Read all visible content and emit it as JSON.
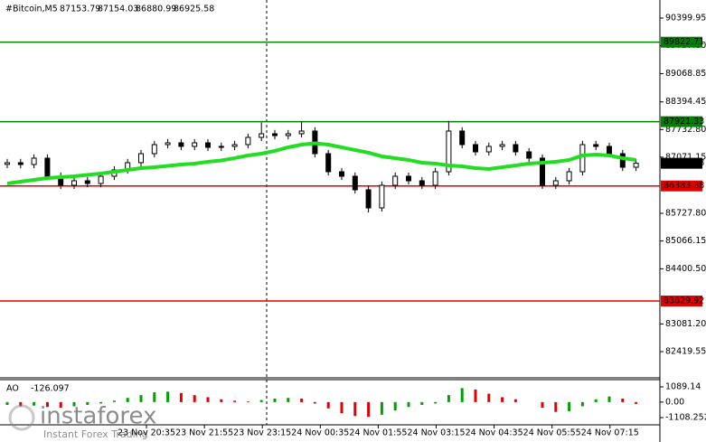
{
  "chart_data": {
    "type": "candlestick",
    "title": "#Bitcoin,M5",
    "quote": [
      87153.79,
      87154.03,
      86880.99,
      86925.58
    ],
    "open": [
      86900,
      86940,
      86896,
      87048,
      86615,
      86399,
      86507,
      86442,
      86615,
      86767,
      86940,
      87156,
      87372,
      87415,
      87329,
      87415,
      87307,
      87329,
      87372,
      87545,
      87632,
      87588,
      87632,
      87697,
      87156,
      86723,
      86615,
      86291,
      85858,
      86399,
      86615,
      86507,
      86399,
      86723,
      87697,
      87372,
      87199,
      87329,
      87372,
      87199,
      87048,
      86399,
      86507,
      86723,
      87372,
      87329,
      87156,
      86831
    ],
    "high": [
      87030,
      87030,
      87138,
      87138,
      86705,
      86597,
      86597,
      86705,
      86857,
      87030,
      87246,
      87462,
      87505,
      87505,
      87505,
      87505,
      87419,
      87462,
      87635,
      87900,
      87722,
      87722,
      87930,
      87787,
      87246,
      86813,
      86705,
      86381,
      86489,
      86705,
      86705,
      86597,
      86813,
      87940,
      87787,
      87462,
      87419,
      87462,
      87462,
      87289,
      87138,
      86597,
      86813,
      87462,
      87462,
      87419,
      87246,
      87016
    ],
    "low": [
      86810,
      86806,
      86806,
      86525,
      86309,
      86309,
      86352,
      86352,
      86525,
      86677,
      86850,
      87066,
      87282,
      87239,
      87239,
      87217,
      87217,
      87239,
      87282,
      87455,
      87498,
      87498,
      87542,
      87066,
      86633,
      86525,
      86201,
      85750,
      85768,
      86309,
      86417,
      86309,
      86309,
      86633,
      87282,
      87109,
      87109,
      87239,
      87109,
      86958,
      86309,
      86309,
      86417,
      86633,
      87239,
      87066,
      86741,
      86741
    ],
    "close": [
      86940,
      86896,
      87048,
      86615,
      86399,
      86507,
      86442,
      86615,
      86767,
      86940,
      87156,
      87372,
      87415,
      87329,
      87415,
      87307,
      87329,
      87372,
      87545,
      87632,
      87588,
      87632,
      87697,
      87156,
      86723,
      86615,
      86291,
      85858,
      86399,
      86615,
      86507,
      86399,
      86723,
      87697,
      87372,
      87199,
      87329,
      87372,
      87199,
      87048,
      86399,
      86507,
      86723,
      87372,
      87329,
      87156,
      86831,
      86925.58
    ],
    "moving_average": {
      "color": "#22dd22",
      "values": [
        86442,
        86485,
        86529,
        86572,
        86594,
        86615,
        86648,
        86680,
        86723,
        86767,
        86810,
        86831,
        86864,
        86896,
        86918,
        86961,
        86994,
        87048,
        87113,
        87156,
        87221,
        87307,
        87372,
        87405,
        87372,
        87307,
        87242,
        87178,
        87091,
        87048,
        87005,
        86940,
        86918,
        86875,
        86853,
        86810,
        86788,
        86831,
        86875,
        86918,
        86940,
        86961,
        87005,
        87113,
        87134,
        87113,
        87048,
        87005
      ]
    },
    "ylim": [
      81857,
      90832
    ],
    "yticks": [
      {
        "value": 90399.95,
        "label": "90399.95"
      },
      {
        "value": 89737.8,
        "label": "89737.80"
      },
      {
        "value": 89068.85,
        "label": "89068.85"
      },
      {
        "value": 88394.45,
        "label": "88394.45"
      },
      {
        "value": 87732.8,
        "label": "87732.80"
      },
      {
        "value": 87071.15,
        "label": "87071.15"
      },
      {
        "value": 85727.8,
        "label": "85727.80"
      },
      {
        "value": 85066.15,
        "label": "85066.15"
      },
      {
        "value": 84400.5,
        "label": "84400.50"
      },
      {
        "value": 83081.2,
        "label": "83081.20"
      },
      {
        "value": 82419.55,
        "label": "82419.55"
      }
    ],
    "levels": [
      {
        "value": 89822.71,
        "color": "#008000"
      },
      {
        "value": 87921.33,
        "color": "#008000"
      },
      {
        "value": 86383.38,
        "color": "#e00000"
      },
      {
        "value": 83629.92,
        "color": "#e00000"
      }
    ],
    "current_price": 86925.58,
    "x_labels": [
      "23 Nov 20:35",
      "23 Nov 21:55",
      "23 Nov 23:15",
      "24 Nov 00:35",
      "24 Nov 01:55",
      "24 Nov 03:15",
      "24 Nov 04:35",
      "24 Nov 05:55",
      "24 Nov 07:15"
    ],
    "ao": {
      "name": "AO",
      "current": -126.097,
      "values": [
        -200,
        -300,
        -250,
        -350,
        -400,
        -300,
        -200,
        -100,
        100,
        300,
        500,
        700,
        750,
        650,
        500,
        350,
        200,
        100,
        50,
        150,
        250,
        300,
        250,
        -100,
        -450,
        -800,
        -1000,
        -1050,
        -900,
        -600,
        -350,
        -200,
        -100,
        500,
        1000,
        900,
        600,
        350,
        200,
        0,
        -400,
        -700,
        -650,
        -300,
        200,
        400,
        250,
        -126.097
      ],
      "ylim": [
        -2271,
        1606
      ],
      "yticks": [
        {
          "value": 1089.14,
          "label": "1089.14"
        },
        {
          "value": 0,
          "label": "0.00"
        },
        {
          "value": -1108.252,
          "label": "-1108.252"
        }
      ],
      "up_color": "#00a000",
      "down_color": "#e00000"
    },
    "watermark": {
      "brand": "instaforex",
      "slogan": "Instant Forex Trading"
    }
  }
}
